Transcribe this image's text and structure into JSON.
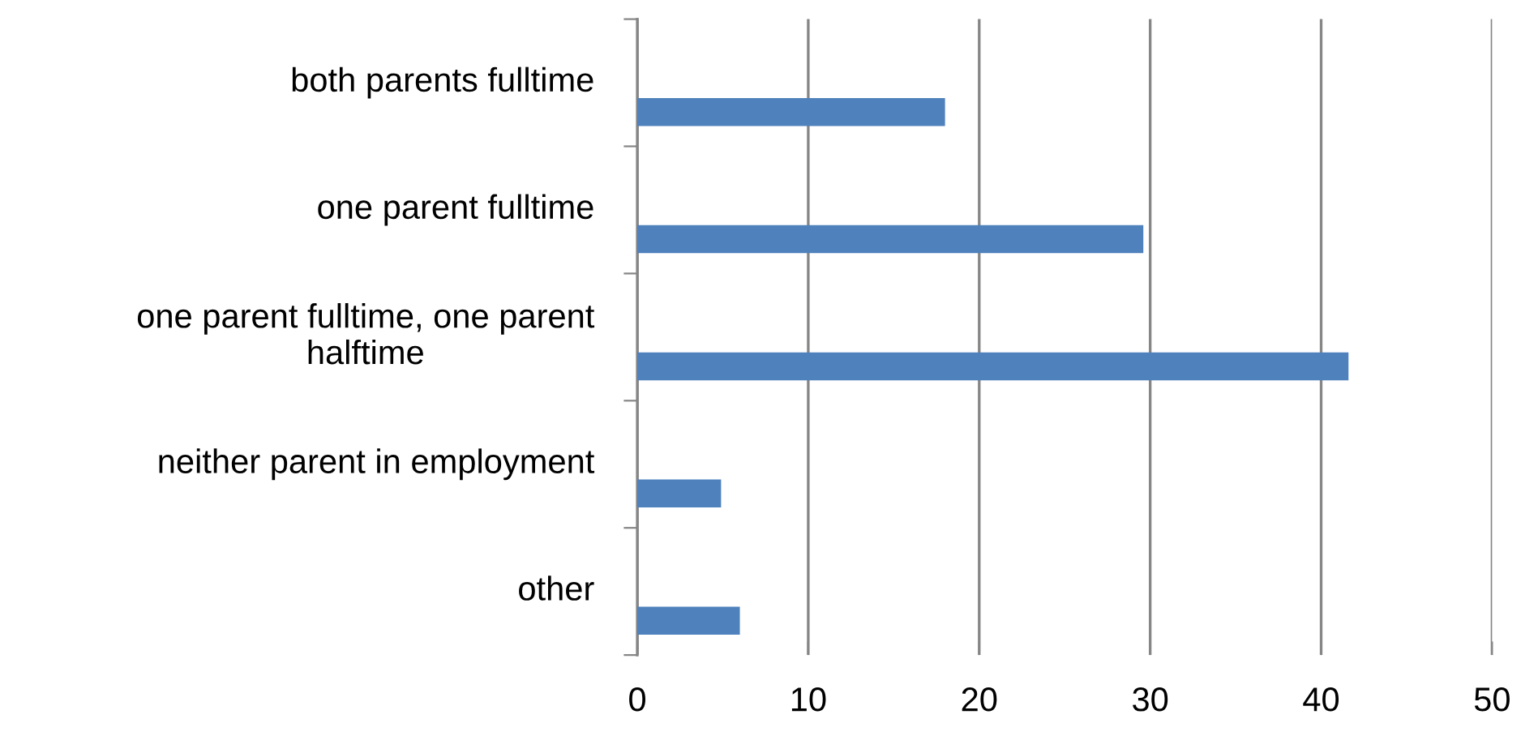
{
  "chart_data": {
    "type": "bar",
    "orientation": "horizontal",
    "categories": [
      "both parents fulltime",
      "one parent fulltime",
      "one parent fulltime, one parent\nhalftime",
      "neither parent in employment",
      "other"
    ],
    "values": [
      18,
      29.6,
      41.6,
      4.9,
      6
    ],
    "color": "#4f81bd",
    "xlim": [
      0,
      50
    ],
    "xticks": [
      0,
      10,
      20,
      30,
      40,
      50
    ],
    "grid": "x"
  }
}
